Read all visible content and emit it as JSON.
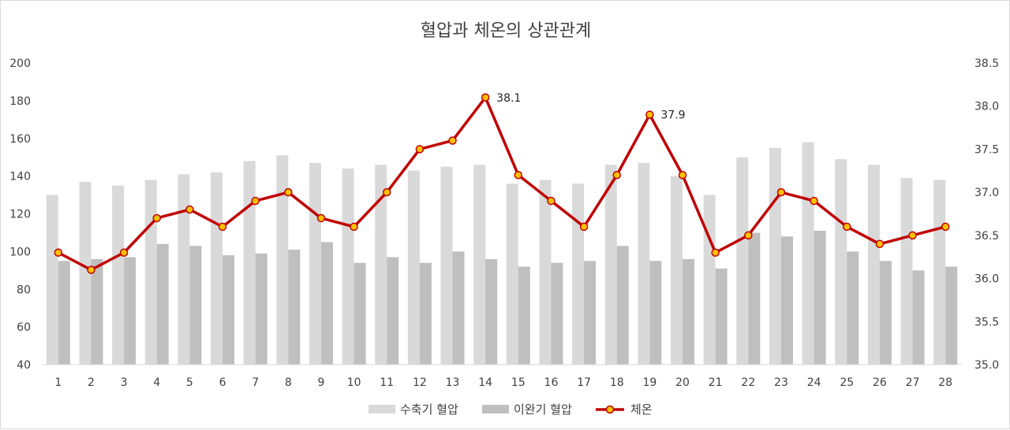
{
  "chart_data": {
    "type": "bar",
    "title": "혈압과 체온의 상관관계",
    "categories": [
      "1",
      "2",
      "3",
      "4",
      "5",
      "6",
      "7",
      "8",
      "9",
      "10",
      "11",
      "12",
      "13",
      "14",
      "15",
      "16",
      "17",
      "18",
      "19",
      "20",
      "21",
      "22",
      "23",
      "24",
      "25",
      "26",
      "27",
      "28"
    ],
    "series": [
      {
        "name": "수축기 혈압",
        "type": "bar",
        "axis": "left",
        "color": "#d9d9d9",
        "values": [
          130,
          137,
          135,
          138,
          141,
          142,
          148,
          151,
          147,
          144,
          146,
          143,
          145,
          146,
          136,
          138,
          136,
          146,
          147,
          140,
          130,
          150,
          155,
          158,
          149,
          146,
          139,
          138
        ]
      },
      {
        "name": "이완기 혈압",
        "type": "bar",
        "axis": "left",
        "color": "#bfbfbf",
        "values": [
          95,
          96,
          97,
          104,
          103,
          98,
          99,
          101,
          105,
          94,
          97,
          94,
          100,
          96,
          92,
          94,
          95,
          103,
          95,
          96,
          91,
          110,
          108,
          111,
          100,
          95,
          90,
          92
        ]
      },
      {
        "name": "체온",
        "type": "line",
        "axis": "right",
        "color": "#c00000",
        "marker_color": "#ffc000",
        "values": [
          36.3,
          36.1,
          36.3,
          36.7,
          36.8,
          36.6,
          36.9,
          37.0,
          36.7,
          36.6,
          37.0,
          37.5,
          37.6,
          38.1,
          37.2,
          36.9,
          36.6,
          37.2,
          37.9,
          37.2,
          36.3,
          36.5,
          37.0,
          36.9,
          36.6,
          36.4,
          36.5,
          36.6
        ]
      }
    ],
    "data_labels": [
      {
        "series": "체온",
        "category": "14",
        "text": "38.1"
      },
      {
        "series": "체온",
        "category": "19",
        "text": "37.9"
      }
    ],
    "y_left": {
      "min": 40,
      "max": 200,
      "ticks": [
        "40",
        "60",
        "80",
        "100",
        "120",
        "140",
        "160",
        "180",
        "200"
      ]
    },
    "y_right": {
      "min": 35.0,
      "max": 38.5,
      "ticks": [
        "35.0",
        "35.5",
        "36.0",
        "36.5",
        "37.0",
        "37.5",
        "38.0",
        "38.5"
      ]
    },
    "grid": false,
    "legend_position": "bottom"
  }
}
